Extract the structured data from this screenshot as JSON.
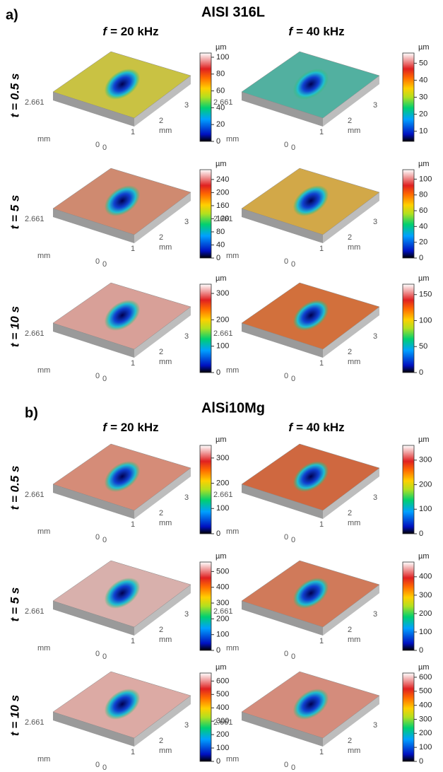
{
  "panels": [
    {
      "label": "a)",
      "title": "AISI 316L",
      "columns": [
        {
          "symbol": "f",
          "text": "= 20 kHz"
        },
        {
          "symbol": "f",
          "text": "= 40 kHz"
        }
      ],
      "rows": [
        "t = 0.5 s",
        "t = 5 s",
        "t = 10 s"
      ],
      "cells": [
        [
          {
            "surface_color": "#c9c243",
            "colorbar": {
              "lim": [
                0,
                105
              ],
              "ticks": [
                0,
                20,
                40,
                60,
                80,
                100
              ]
            }
          },
          {
            "surface_color": "#52b0a0",
            "colorbar": {
              "lim": [
                4,
                56
              ],
              "ticks": [
                10,
                20,
                30,
                40,
                50
              ]
            }
          }
        ],
        [
          {
            "surface_color": "#cf8a70",
            "colorbar": {
              "lim": [
                0,
                270
              ],
              "ticks": [
                0,
                40,
                80,
                120,
                160,
                200,
                240
              ]
            }
          },
          {
            "surface_color": "#d2a848",
            "colorbar": {
              "lim": [
                0,
                112
              ],
              "ticks": [
                0,
                20,
                40,
                60,
                80,
                100
              ]
            }
          }
        ],
        [
          {
            "surface_color": "#d8a098",
            "colorbar": {
              "lim": [
                0,
                335
              ],
              "ticks": [
                0,
                100,
                200,
                300
              ]
            }
          },
          {
            "surface_color": "#d2703c",
            "colorbar": {
              "lim": [
                0,
                170
              ],
              "ticks": [
                0,
                50,
                100,
                150
              ]
            }
          }
        ]
      ]
    },
    {
      "label": "b)",
      "title": "AlSi10Mg",
      "columns": [
        {
          "symbol": "f",
          "text": "= 20 kHz"
        },
        {
          "symbol": "f",
          "text": "= 40 kHz"
        }
      ],
      "rows": [
        "t = 0.5 s",
        "t = 5 s",
        "t = 10 s"
      ],
      "cells": [
        [
          {
            "surface_color": "#d58c78",
            "colorbar": {
              "lim": [
                0,
                350
              ],
              "ticks": [
                0,
                100,
                200,
                300
              ]
            }
          },
          {
            "surface_color": "#cf6840",
            "colorbar": {
              "lim": [
                0,
                360
              ],
              "ticks": [
                0,
                100,
                200,
                300
              ]
            }
          }
        ],
        [
          {
            "surface_color": "#d8b0ac",
            "colorbar": {
              "lim": [
                0,
                560
              ],
              "ticks": [
                0,
                100,
                200,
                300,
                400,
                500
              ]
            }
          },
          {
            "surface_color": "#d07a5a",
            "colorbar": {
              "lim": [
                0,
                480
              ],
              "ticks": [
                0,
                100,
                200,
                300,
                400
              ]
            }
          }
        ],
        [
          {
            "surface_color": "#dcaaa4",
            "colorbar": {
              "lim": [
                0,
                660
              ],
              "ticks": [
                0,
                100,
                200,
                300,
                400,
                500,
                600
              ]
            }
          },
          {
            "surface_color": "#d48c7c",
            "colorbar": {
              "lim": [
                0,
                630
              ],
              "ticks": [
                0,
                100,
                200,
                300,
                400,
                500,
                600
              ]
            }
          }
        ]
      ]
    }
  ],
  "surface_axes": {
    "y_end": 2.661,
    "origin": 0,
    "x_ticks": [
      1,
      2,
      3
    ],
    "unit": "mm",
    "colorbar_unit": "µm"
  }
}
